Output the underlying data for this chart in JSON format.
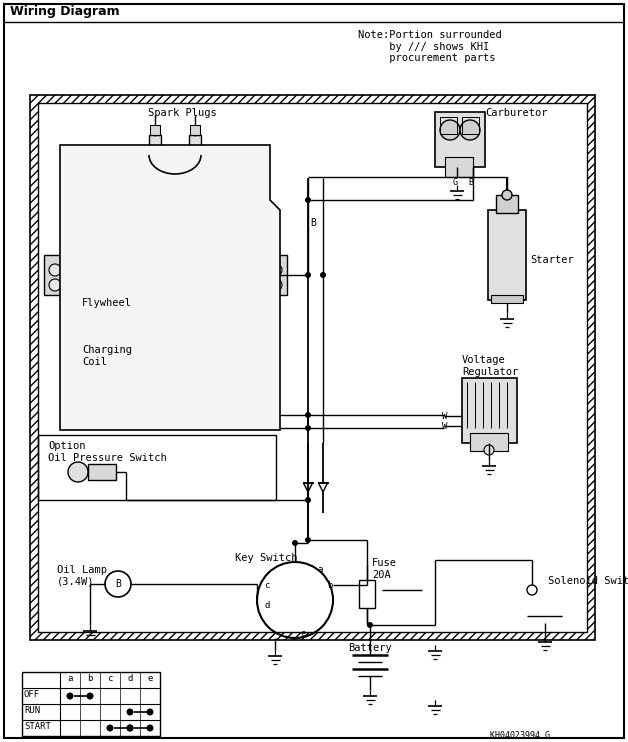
{
  "title": "Wiring Diagram",
  "note_text": "Note:Portion surrounded\n     by /// shows KHI\n     procurement parts",
  "part_id": "KH04023994 G",
  "bg_color": "#ffffff",
  "labels": {
    "spark_plugs": "Spark Plugs",
    "flywheel": "Flywheel",
    "charging_coil": "Charging\nCoil",
    "carburetor": "Carburetor",
    "starter": "Starter",
    "voltage_regulator": "Voltage\nRegulator",
    "option_oil": "Option\nOil Pressure Switch",
    "oil_lamp": "Oil Lamp\n(3.4W)",
    "key_switch": "Key Switch",
    "fuse": "Fuse\n20A",
    "battery": "Battery",
    "solenoid": "Solenoid Switch",
    "W1": "W",
    "W2": "W",
    "B": "B"
  }
}
